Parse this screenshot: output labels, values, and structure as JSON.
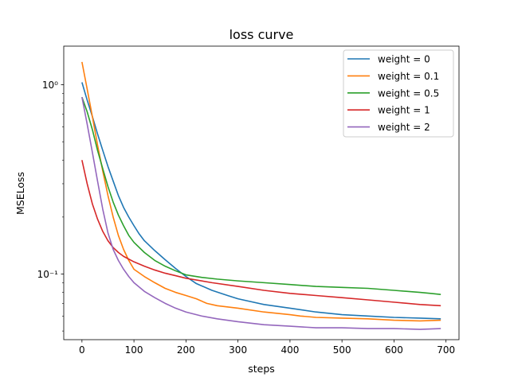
{
  "chart_data": {
    "type": "line",
    "title": "loss curve",
    "xlabel": "steps",
    "ylabel": "MSELoss",
    "yscale": "log",
    "xlim": [
      -35,
      725
    ],
    "ylim": [
      0.045,
      1.6
    ],
    "xticks": [
      0,
      100,
      200,
      300,
      400,
      500,
      600,
      700
    ],
    "xtick_labels": [
      "0",
      "100",
      "200",
      "300",
      "400",
      "500",
      "600",
      "700"
    ],
    "yticks": [
      0.1,
      1
    ],
    "ytick_labels": [
      "10⁻¹",
      "10⁰"
    ],
    "grid": false,
    "legend_position": "top-right",
    "series": [
      {
        "name": "weight = 0",
        "color": "#1f77b4",
        "x": [
          0,
          10,
          20,
          30,
          40,
          50,
          60,
          70,
          80,
          90,
          100,
          110,
          120,
          140,
          160,
          180,
          200,
          220,
          250,
          280,
          300,
          350,
          400,
          450,
          500,
          550,
          600,
          650,
          690
        ],
        "y": [
          1.03,
          0.83,
          0.68,
          0.55,
          0.45,
          0.37,
          0.31,
          0.26,
          0.225,
          0.2,
          0.18,
          0.163,
          0.15,
          0.133,
          0.119,
          0.107,
          0.097,
          0.089,
          0.082,
          0.077,
          0.074,
          0.069,
          0.066,
          0.063,
          0.061,
          0.06,
          0.059,
          0.0585,
          0.058
        ]
      },
      {
        "name": "weight = 0.1",
        "color": "#ff7f0e",
        "x": [
          0,
          10,
          20,
          30,
          40,
          50,
          60,
          70,
          80,
          90,
          100,
          120,
          140,
          160,
          180,
          200,
          220,
          240,
          260,
          300,
          350,
          400,
          420,
          450,
          500,
          550,
          600,
          650,
          690
        ],
        "y": [
          1.32,
          0.95,
          0.68,
          0.48,
          0.35,
          0.26,
          0.2,
          0.16,
          0.135,
          0.118,
          0.106,
          0.097,
          0.09,
          0.084,
          0.08,
          0.077,
          0.074,
          0.07,
          0.068,
          0.066,
          0.063,
          0.061,
          0.06,
          0.059,
          0.0585,
          0.058,
          0.057,
          0.0565,
          0.057
        ]
      },
      {
        "name": "weight = 0.5",
        "color": "#2ca02c",
        "x": [
          0,
          10,
          20,
          30,
          40,
          50,
          60,
          70,
          80,
          90,
          100,
          120,
          140,
          160,
          180,
          200,
          230,
          260,
          300,
          350,
          400,
          450,
          500,
          550,
          600,
          650,
          670,
          690
        ],
        "y": [
          0.86,
          0.72,
          0.58,
          0.45,
          0.36,
          0.29,
          0.24,
          0.205,
          0.18,
          0.16,
          0.147,
          0.13,
          0.118,
          0.11,
          0.104,
          0.099,
          0.096,
          0.094,
          0.092,
          0.09,
          0.088,
          0.086,
          0.085,
          0.084,
          0.082,
          0.08,
          0.079,
          0.078
        ]
      },
      {
        "name": "weight = 1",
        "color": "#d62728",
        "x": [
          0,
          10,
          20,
          30,
          40,
          50,
          60,
          70,
          80,
          100,
          120,
          140,
          160,
          180,
          200,
          250,
          300,
          350,
          400,
          450,
          500,
          550,
          600,
          650,
          690
        ],
        "y": [
          0.4,
          0.3,
          0.235,
          0.195,
          0.168,
          0.15,
          0.138,
          0.13,
          0.124,
          0.116,
          0.11,
          0.105,
          0.101,
          0.098,
          0.095,
          0.09,
          0.086,
          0.082,
          0.079,
          0.077,
          0.075,
          0.073,
          0.071,
          0.069,
          0.068
        ]
      },
      {
        "name": "weight = 2",
        "color": "#9467bd",
        "x": [
          0,
          10,
          20,
          30,
          40,
          50,
          60,
          70,
          80,
          90,
          100,
          120,
          140,
          160,
          180,
          200,
          230,
          260,
          300,
          350,
          400,
          450,
          500,
          550,
          600,
          650,
          690
        ],
        "y": [
          0.86,
          0.62,
          0.44,
          0.31,
          0.22,
          0.165,
          0.135,
          0.118,
          0.106,
          0.097,
          0.09,
          0.081,
          0.075,
          0.07,
          0.066,
          0.063,
          0.06,
          0.058,
          0.056,
          0.054,
          0.053,
          0.052,
          0.052,
          0.0515,
          0.0515,
          0.051,
          0.0515
        ]
      }
    ]
  }
}
